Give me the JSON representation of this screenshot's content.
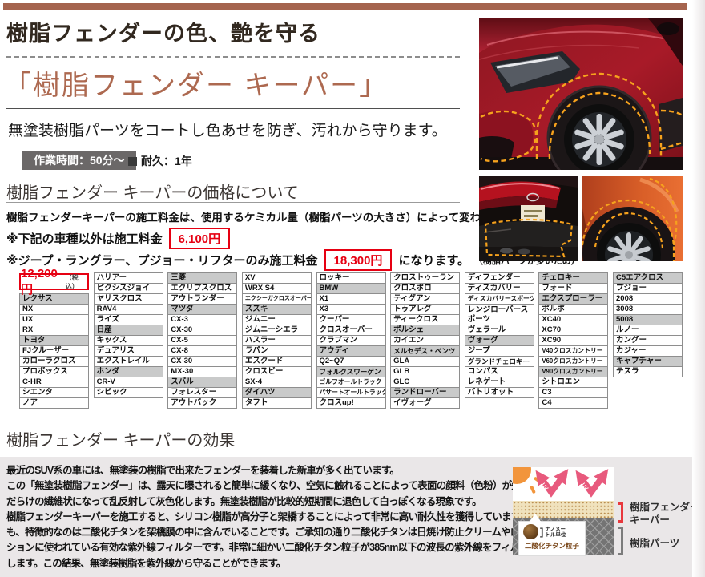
{
  "header": {
    "top_title": "樹脂フェンダーの色、艶を守る",
    "product_title": "「樹脂フェンダー キーパー」",
    "lead": "無塗装樹脂パーツをコートし色あせを防ぎ、汚れから守ります。",
    "work_time_badge": "作業時間：50分～",
    "durability": "耐久：1年"
  },
  "pricing": {
    "section_title": "樹脂フェンダー キーパーの価格について",
    "intro": "樹脂フェンダーキーパーの施工料金は、使用するケミカル量（樹脂パーツの大きさ）によって変わります。",
    "note1_prefix": "※下記の車種以外は施工料金",
    "note1_price": "6,100円",
    "note2_prefix": "※ジープ・ラングラー、プジョー・リフターのみ施工料金",
    "note2_price": "18,300円",
    "note2_suffix": "になります。",
    "note2_small": "（樹脂パーツが多いため）",
    "table_price": "12,200円",
    "table_price_tax": "（税込）",
    "columns": [
      [
        {
          "label": "レクサス",
          "maker": true
        },
        {
          "label": "NX"
        },
        {
          "label": "UX"
        },
        {
          "label": "RX"
        },
        {
          "label": "トヨタ",
          "maker": true
        },
        {
          "label": "FJクルーザー"
        },
        {
          "label": "カローラクロス"
        },
        {
          "label": "プロボックス"
        },
        {
          "label": "C-HR"
        },
        {
          "label": "シエンタ"
        },
        {
          "label": "ノア"
        }
      ],
      [
        {
          "label": "ハリアー"
        },
        {
          "label": "ピクシスジョイ"
        },
        {
          "label": "ヤリスクロス"
        },
        {
          "label": "RAV4"
        },
        {
          "label": "ライズ"
        },
        {
          "label": "日産",
          "maker": true
        },
        {
          "label": "キックス"
        },
        {
          "label": "デュアリス"
        },
        {
          "label": "エクストレイル"
        },
        {
          "label": "ホンダ",
          "maker": true
        },
        {
          "label": "CR-V"
        },
        {
          "label": "シビック"
        }
      ],
      [
        {
          "label": "三菱",
          "maker": true
        },
        {
          "label": "エクリプスクロス"
        },
        {
          "label": "アウトランダー"
        },
        {
          "label": "マツダ",
          "maker": true
        },
        {
          "label": "CX-3"
        },
        {
          "label": "CX-30"
        },
        {
          "label": "CX-5"
        },
        {
          "label": "CX-8"
        },
        {
          "label": "CX-30"
        },
        {
          "label": "MX-30"
        },
        {
          "label": "スバル",
          "maker": true
        },
        {
          "label": "フォレスター"
        },
        {
          "label": "アウトバック"
        }
      ],
      [
        {
          "label": "XV"
        },
        {
          "label": "WRX S4"
        },
        {
          "label": "エクシーガクロスオーバー"
        },
        {
          "label": "スズキ",
          "maker": true
        },
        {
          "label": "ジムニー"
        },
        {
          "label": "ジムニーシエラ"
        },
        {
          "label": "ハスラー"
        },
        {
          "label": "ラパン"
        },
        {
          "label": "エスクード"
        },
        {
          "label": "クロスビー"
        },
        {
          "label": "SX-4"
        },
        {
          "label": "ダイハツ",
          "maker": true
        },
        {
          "label": "タフト"
        }
      ],
      [
        {
          "label": "ロッキー"
        },
        {
          "label": "BMW",
          "maker": true
        },
        {
          "label": "X1"
        },
        {
          "label": "X3"
        },
        {
          "label": "クーパー"
        },
        {
          "label": "クロスオーバー"
        },
        {
          "label": "クラブマン"
        },
        {
          "label": "アウディ",
          "maker": true
        },
        {
          "label": "Q2~Q7"
        },
        {
          "label": "フォルクスワーゲン",
          "maker": true
        },
        {
          "label": "ゴルフオールトラック"
        },
        {
          "label": "パサートオールトラック"
        },
        {
          "label": "クロスup!"
        }
      ],
      [
        {
          "label": "クロストゥーラン"
        },
        {
          "label": "クロスポロ"
        },
        {
          "label": "ティグアン"
        },
        {
          "label": "トゥアレグ"
        },
        {
          "label": "ティークロス"
        },
        {
          "label": "ポルシェ",
          "maker": true
        },
        {
          "label": "カイエン"
        },
        {
          "label": "メルセデス・ベンツ",
          "maker": true
        },
        {
          "label": "GLA"
        },
        {
          "label": "GLB"
        },
        {
          "label": "GLC"
        },
        {
          "label": "ランドローバー",
          "maker": true
        },
        {
          "label": "イヴォーグ"
        }
      ],
      [
        {
          "label": "ディフェンダー"
        },
        {
          "label": "ディスカバリー"
        },
        {
          "label": "ディスカバリースポーツ"
        },
        {
          "label": "レンジローバースポーツ",
          "wrap": true
        },
        {
          "label": "ヴェラール"
        },
        {
          "label": "ヴォーグ",
          "maker": true
        },
        {
          "label": "ジープ"
        },
        {
          "label": "グランドチェロキー"
        },
        {
          "label": "コンパス"
        },
        {
          "label": "レネゲート"
        },
        {
          "label": "パトリオット"
        }
      ],
      [
        {
          "label": "チェロキー",
          "maker": true
        },
        {
          "label": "フォード"
        },
        {
          "label": "エクスプローラー",
          "maker": true
        },
        {
          "label": "ボルボ"
        },
        {
          "label": "XC40"
        },
        {
          "label": "XC70"
        },
        {
          "label": "XC90"
        },
        {
          "label": "V40クロスカントリー"
        },
        {
          "label": "V60クロスカントリー"
        },
        {
          "label": "V90クロスカントリー",
          "maker": true
        },
        {
          "label": "シトロエン"
        },
        {
          "label": "C3"
        },
        {
          "label": "C4"
        }
      ],
      [
        {
          "label": "C5エアクロス",
          "maker": true
        },
        {
          "label": "プジョー"
        },
        {
          "label": "2008"
        },
        {
          "label": "3008"
        },
        {
          "label": "5008",
          "maker": true
        },
        {
          "label": "ルノー"
        },
        {
          "label": "カングー"
        },
        {
          "label": "カジャー"
        },
        {
          "label": "キャプチャー",
          "maker": true
        },
        {
          "label": "テスラ"
        }
      ]
    ]
  },
  "effect": {
    "section_title": "樹脂フェンダー キーパーの効果",
    "lines": [
      "最近のSUV系の車には、無塗装の樹脂で出来たフェンダーを装着した新車が多く出ています。",
      "この「無塗装樹脂フェンダー」は、露天に曝されると簡単に緩くなり、空気に触れることによって表面の顔料（色粉）が失われて隙間",
      "だらけの繊維状になって乱反射して灰色化します。無塗装樹脂が比較的短期間に退色して白っぽくなる現象です。",
      "樹脂フェンダーキーパーを施工すると、シリコン樹脂が高分子と架橋することによって非常に高い耐久性を獲得しています。しか",
      "も、特徴的なのは二酸化チタンを架橋膜の中に含んでいることです。ご承知の通り二酸化チタンは日焼け防止クリームやロー",
      "ションに使われている有効な紫外線フィルターです。非常に細かい二酸化チタン粒子が385nm以下の波長の紫外線をフィルター",
      "します。この結果、無塗装樹脂を紫外線から守ることができます。"
    ]
  },
  "diagram": {
    "uv_label": "UV",
    "nano_unit": "ナノメートル単位",
    "particle_label": "二酸化チタン粒子",
    "keeper_label_line1": "樹脂フェンダー",
    "keeper_label_line2": "キーパー",
    "parts_label": "樹脂パーツ"
  },
  "colors": {
    "accent_brown": "#a5644e",
    "title_brown": "#ad6950",
    "price_red": "#e60012",
    "badge_gray": "#6b6868",
    "table_header_gray": "#c9caca",
    "section_bg_gray": "#eae7e8",
    "dash_orange": "#f6a21d"
  }
}
